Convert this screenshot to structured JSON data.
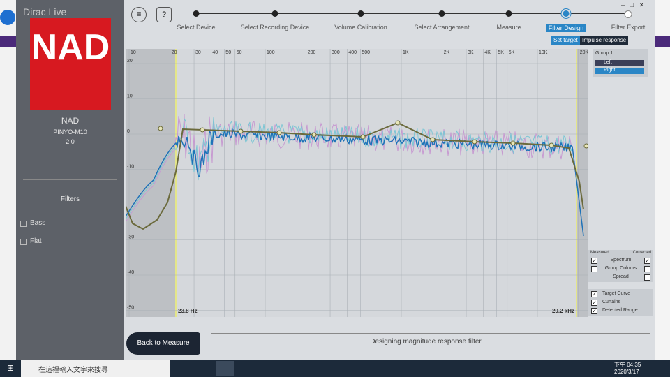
{
  "app": {
    "name": "Dirac Live"
  },
  "device": {
    "brand": "NAD",
    "model": "PINYO-M10",
    "version": "2.0"
  },
  "filters": {
    "title": "Filters",
    "items": [
      "Bass",
      "Flat"
    ]
  },
  "steps": [
    "Select Device",
    "Select Recording Device",
    "Volume Calibration",
    "Select Arrangement",
    "Measure",
    "Filter Design",
    "Filter Export"
  ],
  "active_step": 5,
  "tabs": [
    "Set target",
    "Impulse response"
  ],
  "graph": {
    "x_ticks": [
      {
        "value": 10,
        "label": "10"
      },
      {
        "value": 20,
        "label": "20"
      },
      {
        "value": 30,
        "label": "30"
      },
      {
        "value": 40,
        "label": "40"
      },
      {
        "value": 50,
        "label": "50"
      },
      {
        "value": 60,
        "label": "60"
      },
      {
        "value": 100,
        "label": "100"
      },
      {
        "value": 200,
        "label": "200"
      },
      {
        "value": 300,
        "label": "300"
      },
      {
        "value": 400,
        "label": "400"
      },
      {
        "value": 500,
        "label": "500"
      },
      {
        "value": 1000,
        "label": "1K"
      },
      {
        "value": 2000,
        "label": "2K"
      },
      {
        "value": 3000,
        "label": "3K"
      },
      {
        "value": 4000,
        "label": "4K"
      },
      {
        "value": 5000,
        "label": "5K"
      },
      {
        "value": 6000,
        "label": "6K"
      },
      {
        "value": 10000,
        "label": "10K"
      },
      {
        "value": 20000,
        "label": "20K"
      }
    ],
    "y_ticks": [
      20,
      10,
      0,
      -10,
      -30,
      -40,
      -50
    ],
    "range_labels": [
      "23.8 Hz",
      "20.2 kHz"
    ]
  },
  "group": {
    "title": "Group 1",
    "channels": [
      "Left",
      "Right"
    ]
  },
  "options": {
    "headers": [
      "Measured",
      "Corrected"
    ],
    "rows": [
      {
        "label": "Spectrum",
        "measured": true,
        "corrected": true
      },
      {
        "label": "Group Colours",
        "measured": false,
        "corrected": false
      },
      {
        "label": "Spread",
        "measured": null,
        "corrected": false
      }
    ]
  },
  "overlays": [
    {
      "label": "Target Curve",
      "checked": true
    },
    {
      "label": "Curtains",
      "checked": true
    },
    {
      "label": "Detected Range",
      "checked": true
    }
  ],
  "back_button": "Back to Measure",
  "status": "Designing magnitude response filter",
  "taskbar": {
    "search": "在這裡輸入文字來搜尋",
    "time": "下午 04:35",
    "date": "2020/3/17"
  }
}
